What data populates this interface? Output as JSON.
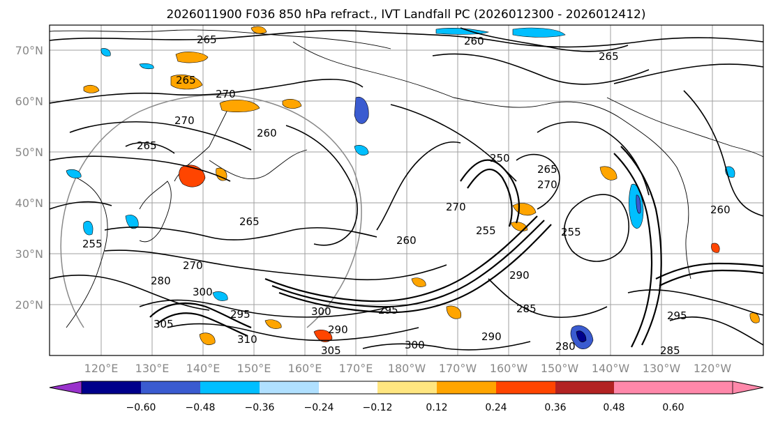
{
  "title": "2026011900 F036 850 hPa refract., IVT Landfall PC (2026012300 - 2026012412)",
  "map": {
    "lat_labels": [
      "70°N",
      "60°N",
      "50°N",
      "40°N",
      "30°N",
      "20°N"
    ],
    "lon_labels": [
      "120°E",
      "130°E",
      "140°E",
      "150°E",
      "160°E",
      "170°E",
      "180°W",
      "170°W",
      "160°W",
      "150°W",
      "140°W",
      "130°W",
      "120°W"
    ],
    "contour_labels": [
      "265",
      "260",
      "265",
      "265",
      "270",
      "270",
      "265",
      "260",
      "265",
      "255",
      "250",
      "270",
      "265",
      "270",
      "260",
      "260",
      "255",
      "255",
      "270",
      "280",
      "290",
      "295",
      "300",
      "305",
      "310",
      "295",
      "300",
      "305",
      "290",
      "285",
      "280",
      "290",
      "300",
      "295",
      "285"
    ]
  },
  "colorbar": {
    "ticks": [
      "−0.60",
      "−0.48",
      "−0.36",
      "−0.24",
      "−0.12",
      "0.12",
      "0.24",
      "0.36",
      "0.48",
      "0.60"
    ],
    "colors": [
      "#9932cc",
      "#00008b",
      "#3a5bd0",
      "#00bfff",
      "#b0e0ff",
      "#ffffff",
      "#ffe680",
      "#ffa500",
      "#ff4500",
      "#b22222",
      "#ff88aa"
    ]
  }
}
